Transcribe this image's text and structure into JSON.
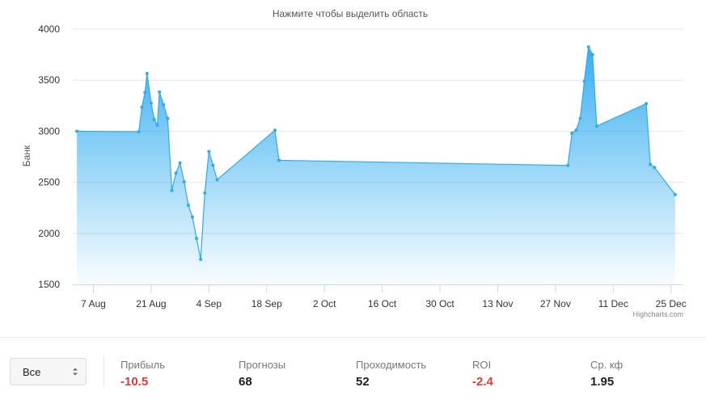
{
  "chart_data": {
    "type": "area",
    "subtitle": "Нажмите чтобы выделить область",
    "ylabel": "Банк",
    "xlabel": "",
    "ylim": [
      1500,
      4000
    ],
    "y_ticks": [
      1500,
      2000,
      2500,
      3000,
      3500,
      4000
    ],
    "xlim": [
      "2018-08-02",
      "2018-12-28"
    ],
    "x_ticks": [
      {
        "date": "2018-08-07",
        "label": "7 Aug"
      },
      {
        "date": "2018-08-21",
        "label": "21 Aug"
      },
      {
        "date": "2018-09-04",
        "label": "4 Sep"
      },
      {
        "date": "2018-09-18",
        "label": "18 Sep"
      },
      {
        "date": "2018-10-02",
        "label": "2 Oct"
      },
      {
        "date": "2018-10-16",
        "label": "16 Oct"
      },
      {
        "date": "2018-10-30",
        "label": "30 Oct"
      },
      {
        "date": "2018-11-13",
        "label": "13 Nov"
      },
      {
        "date": "2018-11-27",
        "label": "27 Nov"
      },
      {
        "date": "2018-12-11",
        "label": "11 Dec"
      },
      {
        "date": "2018-12-25",
        "label": "25 Dec"
      }
    ],
    "grid": true,
    "legend": false,
    "series_color": "#2eaaf0",
    "credits": "Highcharts.com",
    "points": [
      [
        "2018-08-03",
        3000
      ],
      [
        "2018-08-18",
        2995
      ],
      [
        "2018-08-18T18",
        3235
      ],
      [
        "2018-08-19T12",
        3380
      ],
      [
        "2018-08-20",
        3565
      ],
      [
        "2018-08-21",
        3275
      ],
      [
        "2018-08-21T18",
        3115
      ],
      [
        "2018-08-22T12",
        3060
      ],
      [
        "2018-08-23",
        3385
      ],
      [
        "2018-08-24",
        3260
      ],
      [
        "2018-08-25",
        3125
      ],
      [
        "2018-08-26",
        2420
      ],
      [
        "2018-08-27",
        2590
      ],
      [
        "2018-08-28",
        2690
      ],
      [
        "2018-08-29",
        2505
      ],
      [
        "2018-08-30",
        2275
      ],
      [
        "2018-08-31",
        2160
      ],
      [
        "2018-09-01",
        1950
      ],
      [
        "2018-09-02",
        1745
      ],
      [
        "2018-09-03",
        2395
      ],
      [
        "2018-09-04",
        2800
      ],
      [
        "2018-09-05",
        2665
      ],
      [
        "2018-09-06",
        2525
      ],
      [
        "2018-09-20",
        3010
      ],
      [
        "2018-09-21",
        2715
      ],
      [
        "2018-11-30",
        2665
      ],
      [
        "2018-12-01",
        2980
      ],
      [
        "2018-12-02",
        3010
      ],
      [
        "2018-12-03",
        3125
      ],
      [
        "2018-12-04",
        3490
      ],
      [
        "2018-12-05",
        3825
      ],
      [
        "2018-12-06",
        3750
      ],
      [
        "2018-12-07",
        3050
      ],
      [
        "2018-12-19",
        3270
      ],
      [
        "2018-12-20",
        2675
      ],
      [
        "2018-12-21",
        2645
      ],
      [
        "2018-12-26",
        2380
      ]
    ]
  },
  "filter": {
    "selected": "Все"
  },
  "stats": [
    {
      "label": "Прибыль",
      "value": "-10.5",
      "negative": true
    },
    {
      "label": "Прогнозы",
      "value": "68",
      "negative": false
    },
    {
      "label": "Проходимость",
      "value": "52",
      "negative": false
    },
    {
      "label": "ROI",
      "value": "-2.4",
      "negative": true
    },
    {
      "label": "Ср. кф",
      "value": "1.95",
      "negative": false
    }
  ]
}
